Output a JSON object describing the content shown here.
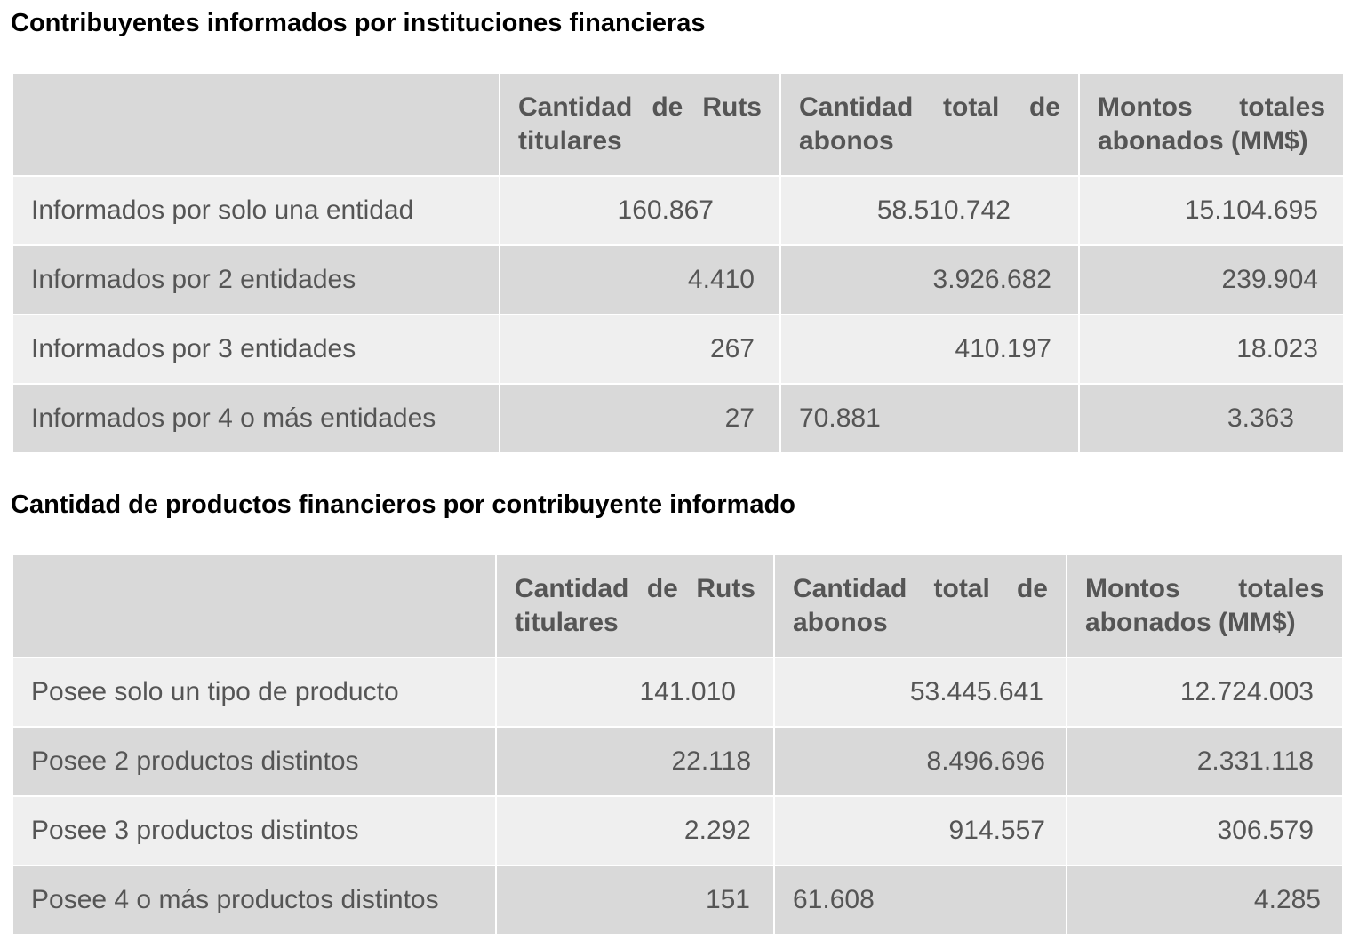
{
  "sections": [
    {
      "title": "Contribuyentes informados por instituciones financieras",
      "table": {
        "columns": [
          "Cantidad de Ruts titulares",
          "Cantidad total de abonos",
          "Montos totales abonados (MM$)"
        ],
        "rows": [
          [
            "Informados por solo una entidad",
            "160.867",
            "58.510.742",
            "15.104.695"
          ],
          [
            "Informados por 2 entidades",
            "4.410",
            "3.926.682",
            "239.904"
          ],
          [
            "Informados por 3 entidades",
            "267",
            "410.197",
            "18.023"
          ],
          [
            "Informados por 4 o más entidades",
            "27",
            "70.881",
            "3.363"
          ]
        ]
      }
    },
    {
      "title": "Cantidad de productos financieros por contribuyente informado",
      "table": {
        "columns": [
          "Cantidad de Ruts titulares",
          "Cantidad total de abonos",
          "Montos totales abonados (MM$)"
        ],
        "rows": [
          [
            "Posee solo un tipo de producto",
            "141.010",
            "53.445.641",
            "12.724.003"
          ],
          [
            "Posee 2 productos distintos",
            "22.118",
            "8.496.696",
            "2.331.118"
          ],
          [
            "Posee 3 productos distintos",
            "2.292",
            "914.557",
            "306.579"
          ],
          [
            "Posee 4 o más productos distintos",
            "151",
            "61.608",
            "4.285"
          ]
        ]
      }
    }
  ]
}
